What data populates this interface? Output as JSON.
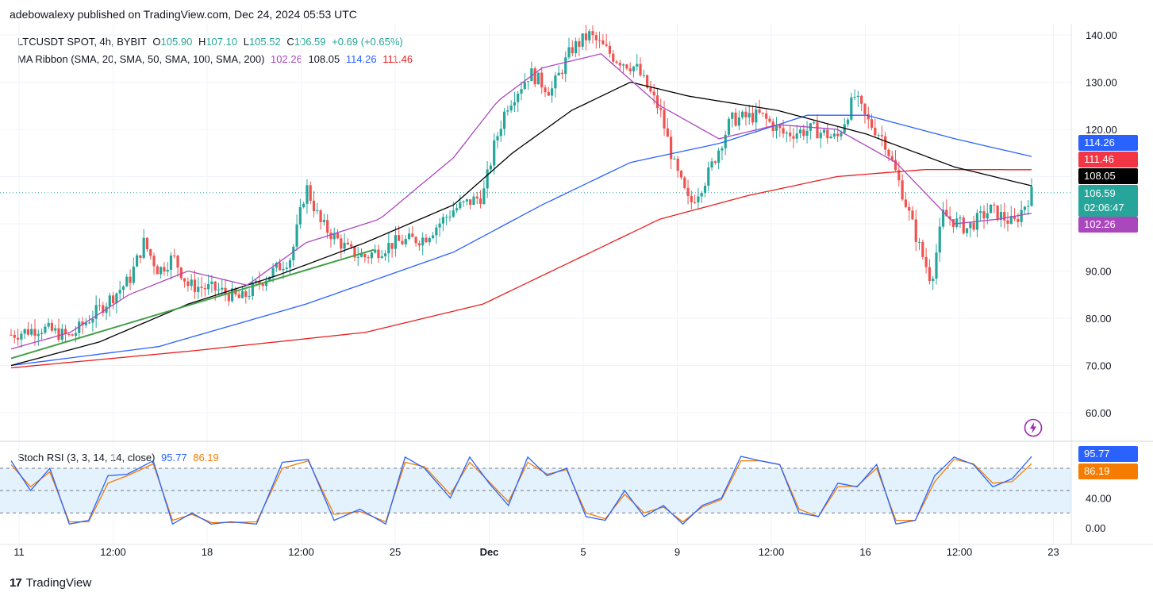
{
  "header": {
    "publisher": "adebowalexy",
    "published_text": "published on TradingView.com, Dec 24, 2024 05:53 UTC"
  },
  "legend_main": {
    "symbol": "LTCUSDT SPOT, 4h, BYBIT",
    "o_label": "O",
    "o": "105.90",
    "h_label": "H",
    "h": "107.10",
    "l_label": "L",
    "l": "105.52",
    "c_label": "C",
    "c": "106.59",
    "change": "+0.69 (+0.65%)"
  },
  "legend_ma": {
    "label": "MA Ribbon (SMA, 20, SMA, 50, SMA, 100, SMA, 200)",
    "v20": "102.26",
    "v50": "108.05",
    "v100": "114.26",
    "v200": "111.46"
  },
  "legend_rsi": {
    "label": "Stoch RSI (3, 3, 14, 14, close)",
    "k": "95.77",
    "d": "86.19"
  },
  "price_tags": {
    "ma100": "114.26",
    "ma200": "111.46",
    "ma50": "108.05",
    "last": "106.59",
    "countdown": "02:06:47",
    "ma20": "102.26",
    "rsi_k": "95.77",
    "rsi_d": "86.19"
  },
  "footer": {
    "brand": "TradingView",
    "logo": "17"
  },
  "colors": {
    "up": "#26a69a",
    "down": "#ef5350",
    "ma20": "#ab47bc",
    "ma50": "#000000",
    "ma100": "#2962ff",
    "ma200": "#e91e1e",
    "trend": "#43a047",
    "rsi_k": "#2962ff",
    "rsi_d": "#f57c00",
    "rsi_band": "#e3f2fd"
  },
  "chart_data": {
    "type": "candlestick",
    "symbol": "LTCUSDT SPOT",
    "timeframe": "4h",
    "y_ticks": [
      "140.00",
      "130.00",
      "120.00",
      "110.00",
      "100.00",
      "90.00",
      "80.00",
      "70.00",
      "60.00"
    ],
    "y_tick_values": [
      140,
      130,
      120,
      110,
      100,
      90,
      80,
      70,
      60
    ],
    "ylim": [
      55,
      142
    ],
    "x_ticks": [
      "11",
      "12:00",
      "18",
      "12:00",
      "25",
      "Dec",
      "5",
      "9",
      "12:00",
      "16",
      "12:00",
      "23"
    ],
    "x_tick_positions": [
      0,
      25,
      50,
      75,
      100,
      125,
      150,
      175,
      200,
      225,
      250,
      275
    ],
    "bar_count": 300,
    "close_anchors": [
      [
        0,
        76.5
      ],
      [
        10,
        78
      ],
      [
        20,
        76
      ],
      [
        30,
        82
      ],
      [
        40,
        88
      ],
      [
        45,
        96
      ],
      [
        50,
        90
      ],
      [
        55,
        93
      ],
      [
        60,
        87
      ],
      [
        70,
        86
      ],
      [
        78,
        84
      ],
      [
        85,
        88
      ],
      [
        95,
        93
      ],
      [
        100,
        108
      ],
      [
        105,
        100
      ],
      [
        115,
        94
      ],
      [
        120,
        93
      ],
      [
        130,
        96
      ],
      [
        140,
        97
      ],
      [
        150,
        103
      ],
      [
        160,
        106
      ],
      [
        164,
        117
      ],
      [
        168,
        125
      ],
      [
        176,
        132
      ],
      [
        183,
        128
      ],
      [
        190,
        137
      ],
      [
        196,
        140
      ],
      [
        205,
        135
      ],
      [
        212,
        133
      ],
      [
        220,
        124
      ],
      [
        225,
        112
      ],
      [
        230,
        104
      ],
      [
        236,
        110
      ],
      [
        244,
        122
      ],
      [
        254,
        123
      ],
      [
        262,
        119
      ],
      [
        272,
        120
      ],
      [
        280,
        118
      ],
      [
        286,
        127
      ],
      [
        290,
        122
      ],
      [
        296,
        118
      ],
      [
        302,
        107
      ],
      [
        308,
        95
      ],
      [
        312,
        88
      ],
      [
        316,
        102
      ],
      [
        324,
        99
      ],
      [
        332,
        103
      ],
      [
        340,
        100
      ],
      [
        346,
        106.59
      ]
    ],
    "ma20_anchors": [
      [
        0,
        73.5
      ],
      [
        20,
        77
      ],
      [
        40,
        85
      ],
      [
        60,
        90
      ],
      [
        80,
        87
      ],
      [
        100,
        96
      ],
      [
        125,
        101
      ],
      [
        150,
        114
      ],
      [
        165,
        126
      ],
      [
        180,
        133
      ],
      [
        200,
        136
      ],
      [
        220,
        125
      ],
      [
        240,
        118
      ],
      [
        260,
        121
      ],
      [
        280,
        120
      ],
      [
        300,
        113
      ],
      [
        320,
        100
      ],
      [
        335,
        101
      ],
      [
        346,
        102.26
      ]
    ],
    "ma50_anchors": [
      [
        0,
        70
      ],
      [
        30,
        75
      ],
      [
        60,
        83
      ],
      [
        90,
        89
      ],
      [
        120,
        96
      ],
      [
        150,
        104
      ],
      [
        170,
        115
      ],
      [
        190,
        124
      ],
      [
        210,
        130
      ],
      [
        230,
        127
      ],
      [
        260,
        124
      ],
      [
        290,
        119
      ],
      [
        320,
        112
      ],
      [
        346,
        108.05
      ]
    ],
    "ma100_anchors": [
      [
        0,
        70
      ],
      [
        50,
        74
      ],
      [
        100,
        83
      ],
      [
        150,
        94
      ],
      [
        180,
        104
      ],
      [
        210,
        113
      ],
      [
        240,
        117
      ],
      [
        270,
        123
      ],
      [
        290,
        123
      ],
      [
        320,
        118
      ],
      [
        346,
        114.26
      ]
    ],
    "ma200_anchors": [
      [
        0,
        69.5
      ],
      [
        60,
        73
      ],
      [
        120,
        77
      ],
      [
        160,
        83
      ],
      [
        190,
        92
      ],
      [
        220,
        101
      ],
      [
        250,
        106
      ],
      [
        280,
        110
      ],
      [
        310,
        111.5
      ],
      [
        346,
        111.46
      ]
    ],
    "trendline": [
      [
        0,
        71.5
      ],
      [
        123,
        94.5
      ]
    ],
    "stoch_rsi": {
      "k_last": 95.77,
      "d_last": 86.19,
      "y_ticks": [
        "40.00",
        "0.00"
      ],
      "bands": [
        80,
        50,
        20
      ],
      "k_anchors": [
        [
          0,
          90
        ],
        [
          6,
          50
        ],
        [
          12,
          80
        ],
        [
          18,
          5
        ],
        [
          24,
          10
        ],
        [
          30,
          70
        ],
        [
          36,
          72
        ],
        [
          44,
          90
        ],
        [
          50,
          5
        ],
        [
          56,
          20
        ],
        [
          62,
          5
        ],
        [
          68,
          8
        ],
        [
          76,
          5
        ],
        [
          84,
          88
        ],
        [
          92,
          92
        ],
        [
          100,
          10
        ],
        [
          108,
          25
        ],
        [
          116,
          5
        ],
        [
          122,
          95
        ],
        [
          128,
          80
        ],
        [
          136,
          40
        ],
        [
          142,
          95
        ],
        [
          148,
          60
        ],
        [
          154,
          30
        ],
        [
          160,
          95
        ],
        [
          166,
          70
        ],
        [
          172,
          80
        ],
        [
          178,
          15
        ],
        [
          184,
          10
        ],
        [
          190,
          50
        ],
        [
          196,
          15
        ],
        [
          202,
          30
        ],
        [
          208,
          5
        ],
        [
          214,
          30
        ],
        [
          220,
          40
        ],
        [
          226,
          96
        ],
        [
          232,
          90
        ],
        [
          238,
          85
        ],
        [
          244,
          20
        ],
        [
          250,
          15
        ],
        [
          256,
          60
        ],
        [
          262,
          55
        ],
        [
          268,
          85
        ],
        [
          274,
          5
        ],
        [
          280,
          10
        ],
        [
          286,
          70
        ],
        [
          292,
          95
        ],
        [
          298,
          85
        ],
        [
          304,
          55
        ],
        [
          310,
          66
        ],
        [
          316,
          95.77
        ]
      ],
      "d_anchors": [
        [
          0,
          85
        ],
        [
          6,
          55
        ],
        [
          12,
          75
        ],
        [
          18,
          8
        ],
        [
          24,
          8
        ],
        [
          30,
          60
        ],
        [
          36,
          70
        ],
        [
          44,
          86
        ],
        [
          50,
          10
        ],
        [
          56,
          18
        ],
        [
          62,
          7
        ],
        [
          68,
          7
        ],
        [
          76,
          8
        ],
        [
          84,
          80
        ],
        [
          92,
          90
        ],
        [
          100,
          18
        ],
        [
          108,
          22
        ],
        [
          116,
          8
        ],
        [
          122,
          88
        ],
        [
          128,
          82
        ],
        [
          136,
          45
        ],
        [
          142,
          88
        ],
        [
          148,
          62
        ],
        [
          154,
          35
        ],
        [
          160,
          88
        ],
        [
          166,
          72
        ],
        [
          172,
          78
        ],
        [
          178,
          20
        ],
        [
          184,
          12
        ],
        [
          190,
          45
        ],
        [
          196,
          20
        ],
        [
          202,
          28
        ],
        [
          208,
          8
        ],
        [
          214,
          28
        ],
        [
          220,
          38
        ],
        [
          226,
          90
        ],
        [
          232,
          90
        ],
        [
          238,
          85
        ],
        [
          244,
          25
        ],
        [
          250,
          15
        ],
        [
          256,
          55
        ],
        [
          262,
          56
        ],
        [
          268,
          80
        ],
        [
          274,
          10
        ],
        [
          280,
          10
        ],
        [
          286,
          62
        ],
        [
          292,
          92
        ],
        [
          298,
          86
        ],
        [
          304,
          60
        ],
        [
          310,
          62
        ],
        [
          316,
          86.19
        ]
      ]
    }
  }
}
